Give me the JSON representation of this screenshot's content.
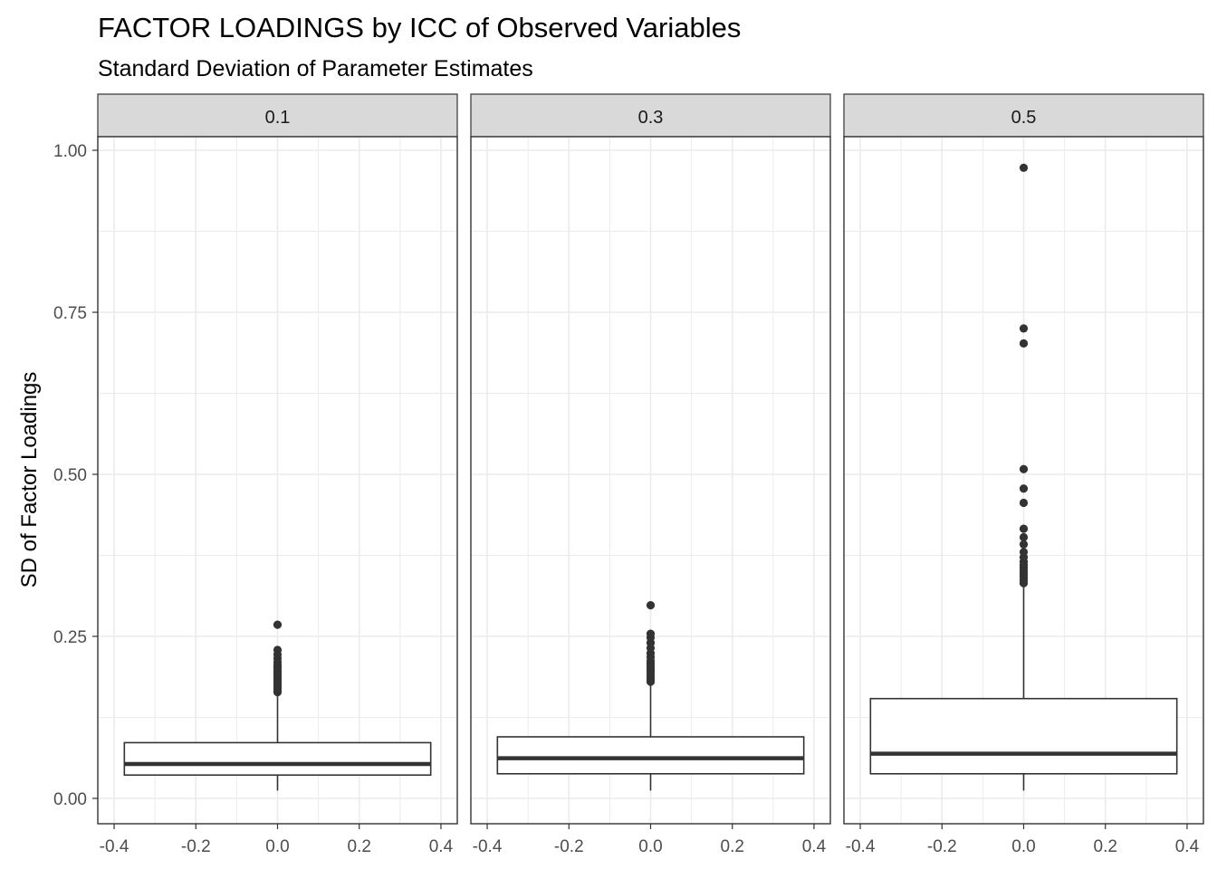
{
  "chart_data": {
    "type": "box",
    "title": "FACTOR LOADINGS by ICC of Observed Variables",
    "subtitle": "Standard Deviation of Parameter Estimates",
    "xlabel": "",
    "ylabel": "SD of Factor Loadings",
    "xlim": [
      -0.4,
      0.4
    ],
    "ylim": [
      0,
      1.0
    ],
    "x_ticks": [
      "-0.4",
      "-0.2",
      "0.0",
      "0.2",
      "0.4"
    ],
    "y_ticks": [
      "0.00",
      "0.25",
      "0.50",
      "0.75",
      "1.00"
    ],
    "grid": true,
    "facet_by": "ICC",
    "panels": [
      {
        "label": "0.1",
        "x": 0.0,
        "box": {
          "min": 0.012,
          "q1": 0.036,
          "median": 0.053,
          "q3": 0.086,
          "whisker_high": 0.162
        },
        "outliers": [
          0.164,
          0.167,
          0.17,
          0.173,
          0.176,
          0.179,
          0.182,
          0.185,
          0.188,
          0.191,
          0.194,
          0.197,
          0.2,
          0.203,
          0.206,
          0.21,
          0.216,
          0.222,
          0.229,
          0.268
        ]
      },
      {
        "label": "0.3",
        "x": 0.0,
        "box": {
          "min": 0.012,
          "q1": 0.038,
          "median": 0.062,
          "q3": 0.095,
          "whisker_high": 0.178
        },
        "outliers": [
          0.18,
          0.184,
          0.188,
          0.192,
          0.196,
          0.2,
          0.204,
          0.208,
          0.212,
          0.218,
          0.224,
          0.232,
          0.24,
          0.248,
          0.254,
          0.298
        ]
      },
      {
        "label": "0.5",
        "x": 0.0,
        "box": {
          "min": 0.012,
          "q1": 0.038,
          "median": 0.069,
          "q3": 0.154,
          "whisker_high": 0.33
        },
        "outliers": [
          0.332,
          0.336,
          0.34,
          0.344,
          0.348,
          0.352,
          0.356,
          0.36,
          0.365,
          0.372,
          0.38,
          0.392,
          0.403,
          0.416,
          0.456,
          0.478,
          0.508,
          0.702,
          0.725,
          0.973
        ]
      }
    ],
    "colors": {
      "box_line": "#333333",
      "point": "#333333",
      "strip_fill": "#d9d9d9",
      "grid": "#ebebeb",
      "panel_border": "#333333"
    }
  }
}
